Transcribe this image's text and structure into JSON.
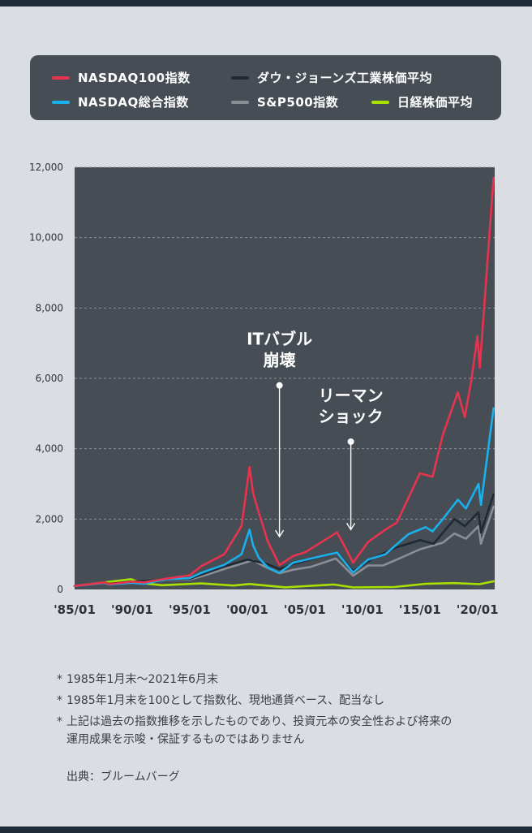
{
  "legend": {
    "items": [
      {
        "label": "NASDAQ100指数",
        "color": "#e8334f"
      },
      {
        "label": "ダウ・ジョーンズ工業株価平均",
        "color": "#1f2a35"
      },
      {
        "label": "NASDAQ総合指数",
        "color": "#1ab0ec"
      },
      {
        "label": "S&P500指数",
        "color": "#8a8f96"
      },
      {
        "label": "日経株価平均",
        "color": "#a8e000"
      }
    ]
  },
  "chart_data": {
    "type": "line",
    "xlim": [
      1985.0,
      2021.5
    ],
    "ylim": [
      0,
      12000
    ],
    "grid": true,
    "ytick_values": [
      0,
      2000,
      4000,
      6000,
      8000,
      10000,
      12000
    ],
    "ytick_labels": [
      "0",
      "2,000",
      "4,000",
      "6,000",
      "8,000",
      "10,000",
      "12,000"
    ],
    "xtick_values": [
      1985,
      1990,
      1995,
      2000,
      2005,
      2010,
      2015,
      2020
    ],
    "xtick_labels": [
      "'85/01",
      "'90/01",
      "'95/01",
      "'00/01",
      "'05/01",
      "'10/01",
      "'15/01",
      "'20/01"
    ],
    "series": [
      {
        "name": "日経株価平均",
        "color": "#a8e000",
        "points": [
          [
            1985,
            100
          ],
          [
            1987,
            180
          ],
          [
            1989.9,
            290
          ],
          [
            1990.8,
            180
          ],
          [
            1992.6,
            120
          ],
          [
            1996,
            170
          ],
          [
            1998.8,
            110
          ],
          [
            2000.2,
            155
          ],
          [
            2003.3,
            60
          ],
          [
            2007.5,
            140
          ],
          [
            2009.2,
            58
          ],
          [
            2012.8,
            70
          ],
          [
            2015.5,
            160
          ],
          [
            2018,
            180
          ],
          [
            2020.2,
            150
          ],
          [
            2021.4,
            230
          ]
        ]
      },
      {
        "name": "S&P500指数",
        "color": "#8a8f96",
        "points": [
          [
            1985,
            100
          ],
          [
            1987.6,
            190
          ],
          [
            1988,
            150
          ],
          [
            1990,
            200
          ],
          [
            1993,
            270
          ],
          [
            1995,
            280
          ],
          [
            1996,
            370
          ],
          [
            1998,
            580
          ],
          [
            2000.5,
            830
          ],
          [
            2001.5,
            650
          ],
          [
            2002.8,
            460
          ],
          [
            2004,
            560
          ],
          [
            2005.5,
            640
          ],
          [
            2007.7,
            880
          ],
          [
            2009.2,
            390
          ],
          [
            2010.5,
            680
          ],
          [
            2011.8,
            680
          ],
          [
            2013,
            850
          ],
          [
            2015,
            1140
          ],
          [
            2017,
            1330
          ],
          [
            2018,
            1590
          ],
          [
            2019,
            1440
          ],
          [
            2020.1,
            1800
          ],
          [
            2020.3,
            1300
          ],
          [
            2021.4,
            2350
          ]
        ]
      },
      {
        "name": "ダウ・ジョーンズ工業株価平均",
        "color": "#1f2a35",
        "points": [
          [
            1985,
            100
          ],
          [
            1987.6,
            200
          ],
          [
            1988,
            160
          ],
          [
            1990,
            220
          ],
          [
            1993,
            280
          ],
          [
            1995,
            300
          ],
          [
            1996,
            420
          ],
          [
            1998,
            650
          ],
          [
            2000,
            850
          ],
          [
            2001.7,
            730
          ],
          [
            2002.8,
            580
          ],
          [
            2004,
            720
          ],
          [
            2007.8,
            1060
          ],
          [
            2009.2,
            520
          ],
          [
            2011,
            900
          ],
          [
            2013,
            1200
          ],
          [
            2015,
            1400
          ],
          [
            2016.2,
            1300
          ],
          [
            2018,
            2000
          ],
          [
            2018.9,
            1800
          ],
          [
            2020.1,
            2200
          ],
          [
            2020.3,
            1620
          ],
          [
            2021.4,
            2700
          ]
        ]
      },
      {
        "name": "NASDAQ総合指数",
        "color": "#1ab0ec",
        "points": [
          [
            1985,
            100
          ],
          [
            1987.6,
            190
          ],
          [
            1988,
            140
          ],
          [
            1990,
            190
          ],
          [
            1991,
            160
          ],
          [
            1993,
            290
          ],
          [
            1995,
            320
          ],
          [
            1996,
            470
          ],
          [
            1998,
            700
          ],
          [
            1999.5,
            1000
          ],
          [
            2000.2,
            1700
          ],
          [
            2000.5,
            1260
          ],
          [
            2001,
            900
          ],
          [
            2001.8,
            620
          ],
          [
            2002.8,
            470
          ],
          [
            2004,
            760
          ],
          [
            2007.8,
            1050
          ],
          [
            2009.2,
            480
          ],
          [
            2010.5,
            850
          ],
          [
            2012,
            1000
          ],
          [
            2014,
            1570
          ],
          [
            2015.5,
            1770
          ],
          [
            2016.1,
            1650
          ],
          [
            2017,
            2000
          ],
          [
            2018.3,
            2550
          ],
          [
            2019,
            2300
          ],
          [
            2020.1,
            3000
          ],
          [
            2020.3,
            2400
          ],
          [
            2021.4,
            5150
          ]
        ]
      },
      {
        "name": "NASDAQ100指数",
        "color": "#e8334f",
        "points": [
          [
            1985,
            100
          ],
          [
            1987.6,
            200
          ],
          [
            1988,
            150
          ],
          [
            1990,
            220
          ],
          [
            1991,
            200
          ],
          [
            1993,
            310
          ],
          [
            1995,
            400
          ],
          [
            1996,
            660
          ],
          [
            1998,
            1000
          ],
          [
            1999.5,
            1800
          ],
          [
            2000.2,
            3480
          ],
          [
            2000.5,
            2750
          ],
          [
            2000.9,
            2300
          ],
          [
            2001.8,
            1350
          ],
          [
            2002.8,
            690
          ],
          [
            2004,
            950
          ],
          [
            2005,
            1050
          ],
          [
            2007.8,
            1620
          ],
          [
            2008.5,
            1200
          ],
          [
            2009.2,
            760
          ],
          [
            2010.5,
            1350
          ],
          [
            2012,
            1700
          ],
          [
            2013,
            1900
          ],
          [
            2014,
            2600
          ],
          [
            2015,
            3300
          ],
          [
            2016.1,
            3200
          ],
          [
            2017,
            4400
          ],
          [
            2018.3,
            5600
          ],
          [
            2018.9,
            4900
          ],
          [
            2019.5,
            6000
          ],
          [
            2020,
            7200
          ],
          [
            2020.2,
            6300
          ],
          [
            2021.4,
            11700
          ]
        ]
      }
    ]
  },
  "annotations": [
    {
      "text_lines": [
        "ITバブル",
        "崩壊"
      ],
      "x": 2002.8,
      "y_top": 5800,
      "y_bottom": 1500
    },
    {
      "text_lines": [
        "リーマン",
        "ショック"
      ],
      "x": 2009.0,
      "y_top": 4200,
      "y_bottom": 1700
    }
  ],
  "notes": [
    {
      "mark": "*",
      "lines": [
        "1985年1月末〜2021年6月末"
      ]
    },
    {
      "mark": "*",
      "lines": [
        "1985年1月末を100として指数化、現地通貨ベース、配当なし"
      ]
    },
    {
      "mark": "*",
      "lines": [
        "上記は過去の指数推移を示したものであり、投資元本の安全性および将来の",
        "運用成果を示唆・保証するものではありません"
      ]
    }
  ],
  "source": "出典：ブルームバーグ"
}
